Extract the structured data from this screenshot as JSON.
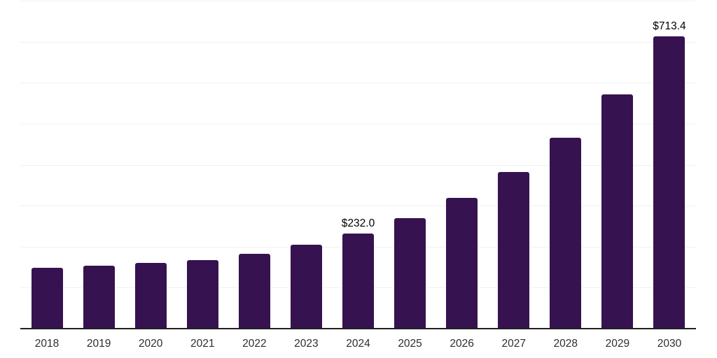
{
  "chart_data": {
    "type": "bar",
    "title": "",
    "xlabel": "",
    "ylabel": "",
    "categories": [
      "2018",
      "2019",
      "2020",
      "2021",
      "2022",
      "2023",
      "2024",
      "2025",
      "2026",
      "2027",
      "2028",
      "2029",
      "2030"
    ],
    "values": [
      147.6,
      153.2,
      160.0,
      167.4,
      181.7,
      204.3,
      232.0,
      269.9,
      318.9,
      381.9,
      465.3,
      570.9,
      713.4
    ],
    "point_labels": {
      "2024": "$232.0",
      "2030": "$713.4"
    },
    "ylim": [
      0,
      800
    ],
    "gridline_step": 100,
    "grid": true,
    "y_tick_labels_visible": false,
    "legend": "none",
    "colors": {
      "bar": "#361250",
      "gridline": "#f0f0f0",
      "axis": "#222222",
      "tick_label": "#2e2e2e",
      "value_label": "#000000",
      "background": "#ffffff"
    }
  }
}
